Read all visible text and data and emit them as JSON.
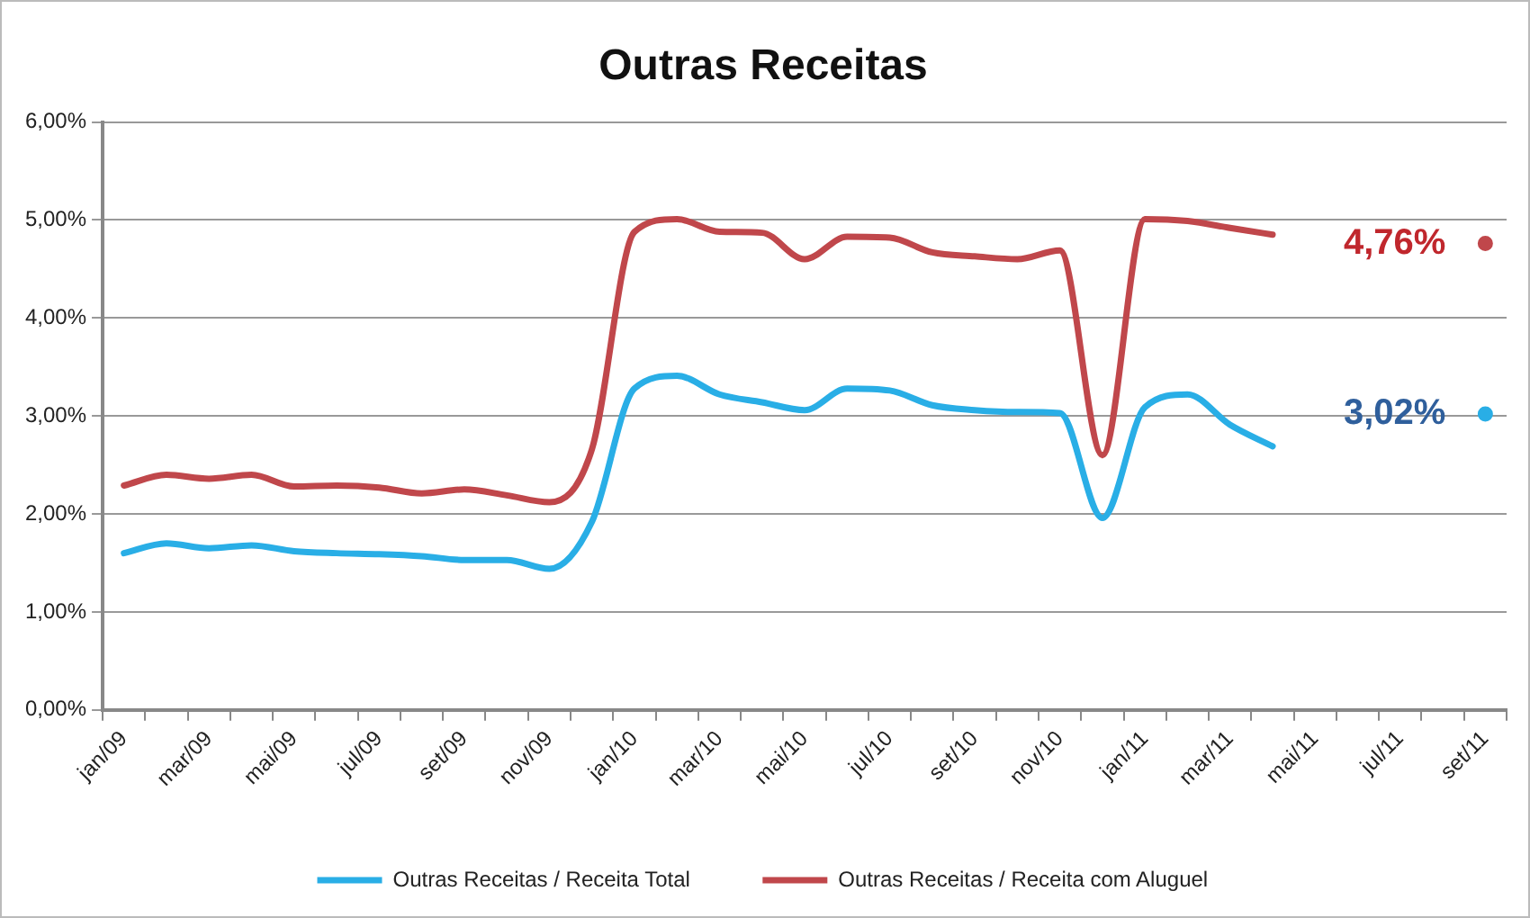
{
  "chart_data": {
    "type": "line",
    "title": "Outras Receitas",
    "categories": [
      "jan/09",
      null,
      "mar/09",
      null,
      "mai/09",
      null,
      "jul/09",
      null,
      "set/09",
      null,
      "nov/09",
      null,
      "jan/10",
      null,
      "mar/10",
      null,
      "mai/10",
      null,
      "jul/10",
      null,
      "set/10",
      null,
      "nov/10",
      null,
      "jan/11",
      null,
      "mar/11",
      null,
      "mai/11",
      null,
      "jul/11",
      null,
      "set/11"
    ],
    "series": [
      {
        "name": "Outras Receitas / Receita Total",
        "color": "#29aee6",
        "values": [
          1.6,
          1.7,
          1.65,
          1.68,
          1.62,
          1.6,
          1.59,
          1.57,
          1.53,
          1.53,
          1.44,
          1.92,
          3.28,
          3.41,
          3.22,
          3.14,
          3.06,
          3.28,
          3.26,
          3.11,
          3.06,
          3.04,
          3.03,
          1.96,
          3.09,
          3.22,
          2.91,
          2.69,
          null,
          null,
          null,
          null,
          3.02
        ]
      },
      {
        "name": "Outras Receitas / Receita com Aluguel",
        "color": "#c0474b",
        "values": [
          2.29,
          2.4,
          2.36,
          2.4,
          2.28,
          2.29,
          2.27,
          2.21,
          2.25,
          2.19,
          2.12,
          2.66,
          4.88,
          5.01,
          4.88,
          4.87,
          4.6,
          4.83,
          4.82,
          4.67,
          4.63,
          4.6,
          4.69,
          2.6,
          5.01,
          4.99,
          4.92,
          4.85,
          null,
          null,
          null,
          null,
          4.76
        ]
      }
    ],
    "ylim": [
      0,
      6
    ],
    "yticks": [
      {
        "value": 0,
        "label": "0,00%"
      },
      {
        "value": 1,
        "label": "1,00%"
      },
      {
        "value": 2,
        "label": "2,00%"
      },
      {
        "value": 3,
        "label": "3,00%"
      },
      {
        "value": 4,
        "label": "4,00%"
      },
      {
        "value": 5,
        "label": "5,00%"
      },
      {
        "value": 6,
        "label": "6,00%"
      }
    ],
    "annotations": [
      {
        "text": "4,76%",
        "x": "set/11",
        "y": 4.76
      },
      {
        "text": "3,02%",
        "x": "set/11",
        "y": 3.02
      }
    ],
    "grid": "y",
    "legend": "bottom",
    "marker": "none",
    "line_style": "solid"
  }
}
